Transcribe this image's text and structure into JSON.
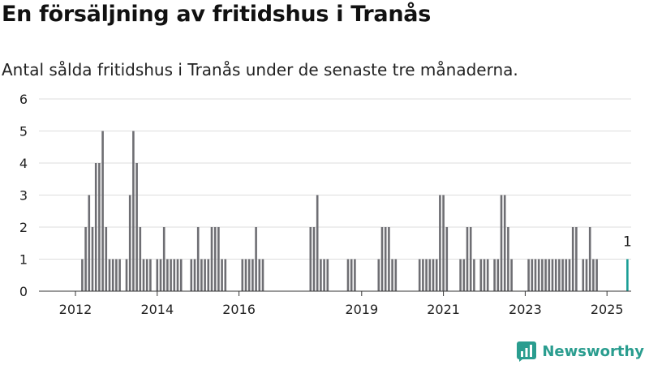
{
  "title": "En försäljning av fritidshus i Tranås",
  "subtitle": "Antal sålda fritidshus i Tranås under de senaste tre månaderna.",
  "brand": {
    "name": "Newsworthy",
    "color": "#2a9d8f"
  },
  "colors": {
    "bar": "#6e6e73",
    "highlight": "#1a9e96",
    "grid": "#dddddd",
    "axis": "#333333"
  },
  "chart_data": {
    "type": "bar",
    "x_unit": "month",
    "ylim": [
      0,
      6
    ],
    "yticks": [
      "0",
      "1",
      "2",
      "3",
      "4",
      "5",
      "6"
    ],
    "xticks": [
      {
        "label": "2012",
        "date": "2012-01"
      },
      {
        "label": "2014",
        "date": "2014-01"
      },
      {
        "label": "2016",
        "date": "2016-01"
      },
      {
        "label": "2019",
        "date": "2019-01"
      },
      {
        "label": "2021",
        "date": "2021-01"
      },
      {
        "label": "2023",
        "date": "2023-01"
      },
      {
        "label": "2025",
        "date": "2025-01"
      }
    ],
    "grid": true,
    "series": [
      {
        "points": [
          [
            "2012-03",
            1
          ],
          [
            "2012-04",
            2
          ],
          [
            "2012-05",
            3
          ],
          [
            "2012-06",
            2
          ],
          [
            "2012-07",
            4
          ],
          [
            "2012-08",
            4
          ],
          [
            "2012-09",
            5
          ],
          [
            "2012-10",
            2
          ],
          [
            "2012-11",
            1
          ],
          [
            "2012-12",
            1
          ],
          [
            "2013-01",
            1
          ],
          [
            "2013-02",
            1
          ],
          [
            "2013-04",
            1
          ],
          [
            "2013-05",
            3
          ],
          [
            "2013-06",
            5
          ],
          [
            "2013-07",
            4
          ],
          [
            "2013-08",
            2
          ],
          [
            "2013-09",
            1
          ],
          [
            "2013-10",
            1
          ],
          [
            "2013-11",
            1
          ],
          [
            "2014-01",
            1
          ],
          [
            "2014-02",
            1
          ],
          [
            "2014-03",
            2
          ],
          [
            "2014-04",
            1
          ],
          [
            "2014-05",
            1
          ],
          [
            "2014-06",
            1
          ],
          [
            "2014-07",
            1
          ],
          [
            "2014-08",
            1
          ],
          [
            "2014-11",
            1
          ],
          [
            "2014-12",
            1
          ],
          [
            "2015-01",
            2
          ],
          [
            "2015-02",
            1
          ],
          [
            "2015-03",
            1
          ],
          [
            "2015-04",
            1
          ],
          [
            "2015-05",
            2
          ],
          [
            "2015-06",
            2
          ],
          [
            "2015-07",
            2
          ],
          [
            "2015-08",
            1
          ],
          [
            "2015-09",
            1
          ],
          [
            "2016-02",
            1
          ],
          [
            "2016-03",
            1
          ],
          [
            "2016-04",
            1
          ],
          [
            "2016-05",
            1
          ],
          [
            "2016-06",
            2
          ],
          [
            "2016-07",
            1
          ],
          [
            "2016-08",
            1
          ],
          [
            "2017-10",
            2
          ],
          [
            "2017-11",
            2
          ],
          [
            "2017-12",
            3
          ],
          [
            "2018-01",
            1
          ],
          [
            "2018-02",
            1
          ],
          [
            "2018-03",
            1
          ],
          [
            "2018-09",
            1
          ],
          [
            "2018-10",
            1
          ],
          [
            "2018-11",
            1
          ],
          [
            "2019-06",
            1
          ],
          [
            "2019-07",
            2
          ],
          [
            "2019-08",
            2
          ],
          [
            "2019-09",
            2
          ],
          [
            "2019-10",
            1
          ],
          [
            "2019-11",
            1
          ],
          [
            "2020-06",
            1
          ],
          [
            "2020-07",
            1
          ],
          [
            "2020-08",
            1
          ],
          [
            "2020-09",
            1
          ],
          [
            "2020-10",
            1
          ],
          [
            "2020-11",
            1
          ],
          [
            "2020-12",
            3
          ],
          [
            "2021-01",
            3
          ],
          [
            "2021-02",
            2
          ],
          [
            "2021-06",
            1
          ],
          [
            "2021-07",
            1
          ],
          [
            "2021-08",
            2
          ],
          [
            "2021-09",
            2
          ],
          [
            "2021-10",
            1
          ],
          [
            "2021-12",
            1
          ],
          [
            "2022-01",
            1
          ],
          [
            "2022-02",
            1
          ],
          [
            "2022-04",
            1
          ],
          [
            "2022-05",
            1
          ],
          [
            "2022-06",
            3
          ],
          [
            "2022-07",
            3
          ],
          [
            "2022-08",
            2
          ],
          [
            "2022-09",
            1
          ],
          [
            "2023-02",
            1
          ],
          [
            "2023-03",
            1
          ],
          [
            "2023-04",
            1
          ],
          [
            "2023-05",
            1
          ],
          [
            "2023-06",
            1
          ],
          [
            "2023-07",
            1
          ],
          [
            "2023-08",
            1
          ],
          [
            "2023-09",
            1
          ],
          [
            "2023-10",
            1
          ],
          [
            "2023-11",
            1
          ],
          [
            "2023-12",
            1
          ],
          [
            "2024-01",
            1
          ],
          [
            "2024-02",
            1
          ],
          [
            "2024-03",
            2
          ],
          [
            "2024-04",
            2
          ],
          [
            "2024-06",
            1
          ],
          [
            "2024-07",
            1
          ],
          [
            "2024-08",
            2
          ],
          [
            "2024-09",
            1
          ],
          [
            "2024-10",
            1
          ],
          [
            "2025-07",
            1,
            "highlight"
          ]
        ]
      }
    ],
    "annotations": [
      {
        "date": "2025-07",
        "text": "1"
      }
    ]
  }
}
